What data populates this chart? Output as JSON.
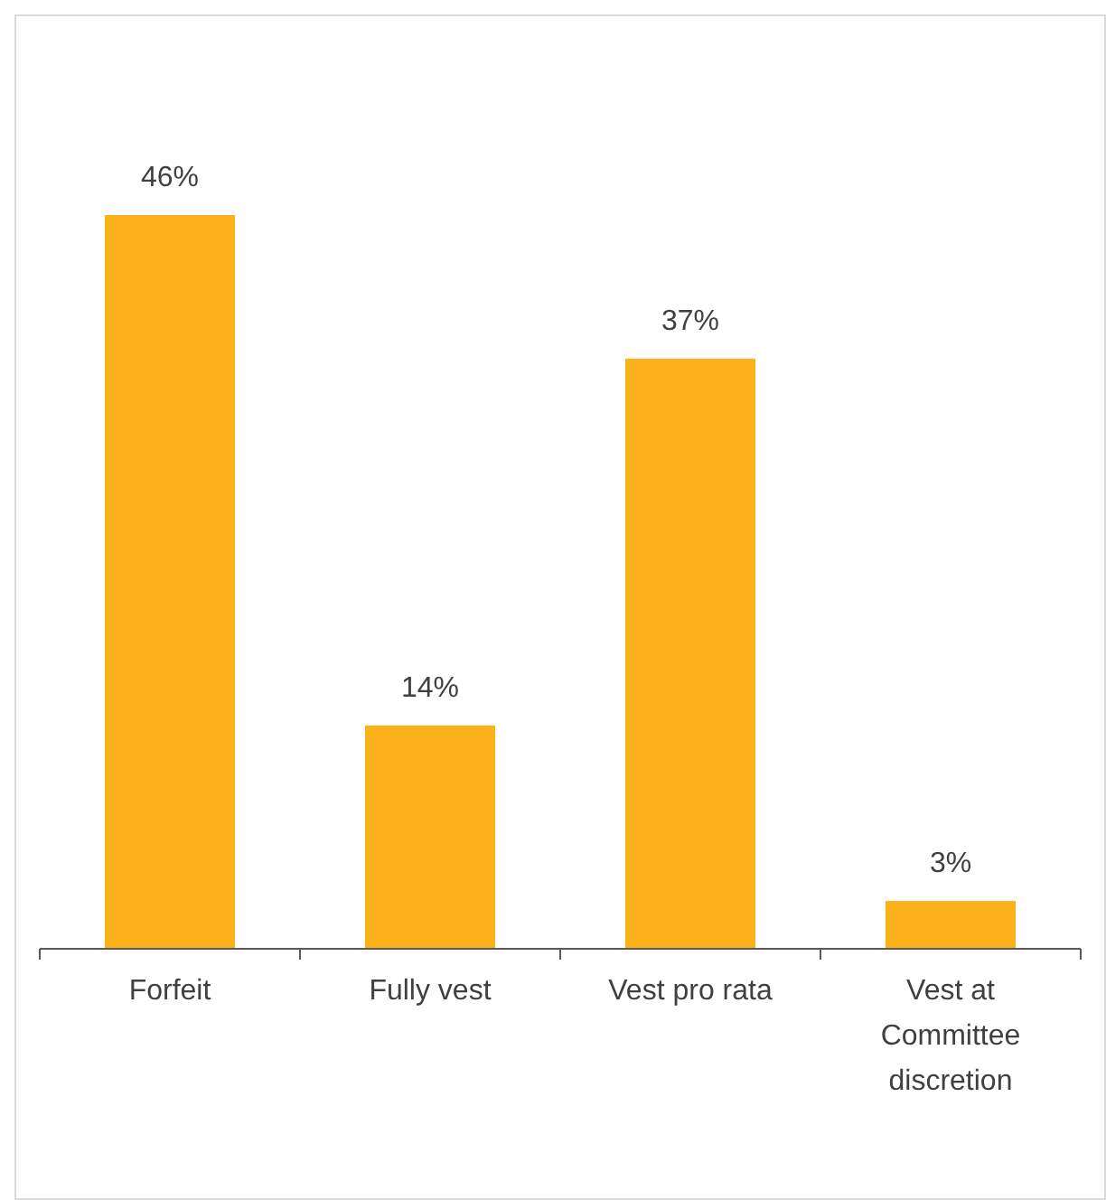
{
  "chart_data": {
    "type": "bar",
    "categories": [
      "Forfeit",
      "Fully vest",
      "Vest pro rata",
      "Vest at Committee discretion"
    ],
    "values": [
      46,
      14,
      37,
      3
    ],
    "color": "#fbb11a",
    "value_labels": [
      "46%",
      "14%",
      "37%",
      "3%"
    ]
  }
}
